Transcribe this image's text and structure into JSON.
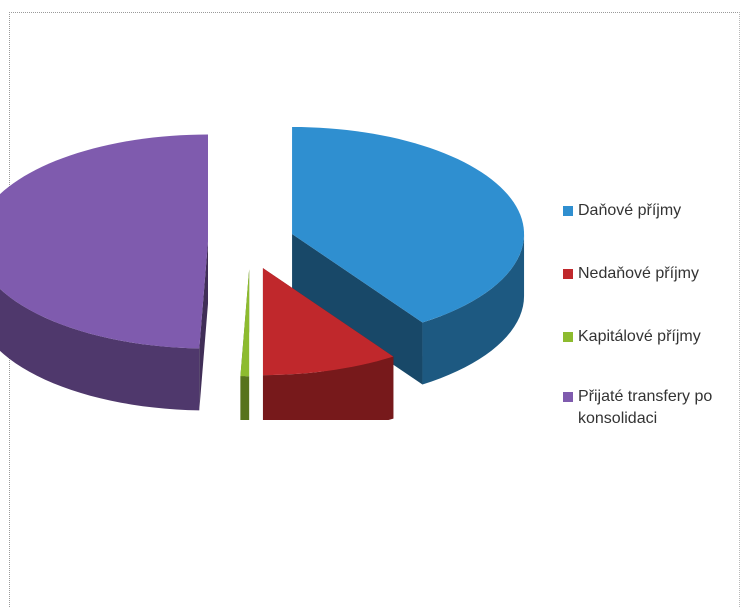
{
  "chart_data": {
    "type": "pie",
    "style": "3d-exploded",
    "title": "",
    "slices": [
      {
        "label": "Daňové příjmy",
        "value": 40.5,
        "color": "#2F8FD0"
      },
      {
        "label": "Nedaňové příjmy",
        "value": 9.5,
        "color": "#C0282C"
      },
      {
        "label": "Kapitálové příjmy",
        "value": 0.6,
        "color": "#8DBB2F"
      },
      {
        "label": "Přijaté transfery po konsolidaci",
        "value": 49.4,
        "color": "#7F5BAE"
      }
    ],
    "legend_position": "right"
  }
}
